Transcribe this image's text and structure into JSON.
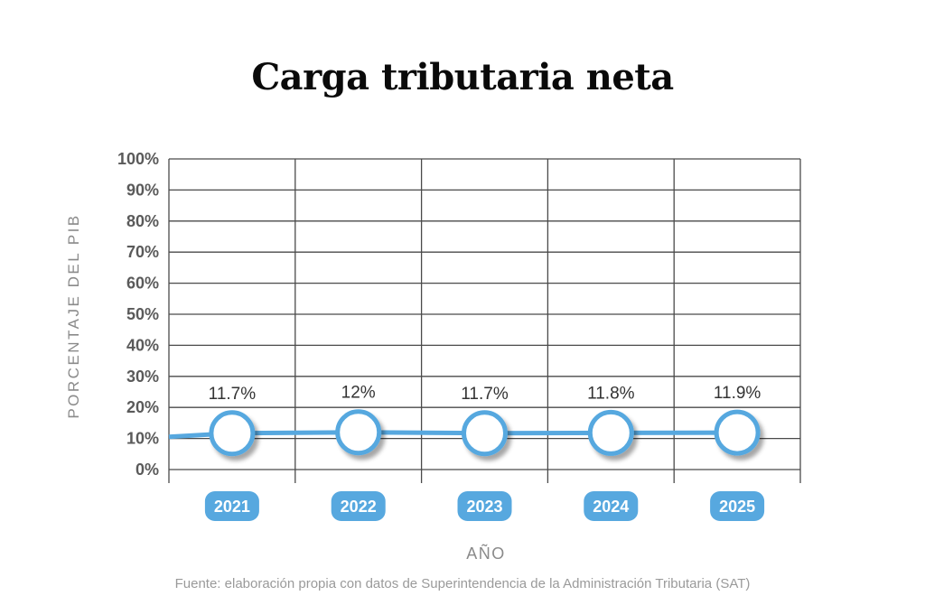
{
  "chart_data": {
    "type": "line",
    "title": "Carga tributaria neta",
    "xlabel": "AÑO",
    "ylabel": "PORCENTAJE DEL PIB",
    "categories": [
      "2021",
      "2022",
      "2023",
      "2024",
      "2025"
    ],
    "values": [
      11.7,
      12,
      11.7,
      11.8,
      11.9
    ],
    "data_labels": [
      "11.7%",
      "12%",
      "11.7%",
      "11.8%",
      "11.9%"
    ],
    "y_ticks": [
      "0%",
      "10%",
      "20%",
      "30%",
      "40%",
      "50%",
      "60%",
      "70%",
      "80%",
      "90%",
      "100%"
    ],
    "ylim": [
      0,
      100
    ],
    "grid": true,
    "line_color": "#57a8df",
    "category_badge_color": "#57a8df"
  },
  "source": "Fuente: elaboración propia con datos de Superintendencia de la Administración Tributaria (SAT)"
}
